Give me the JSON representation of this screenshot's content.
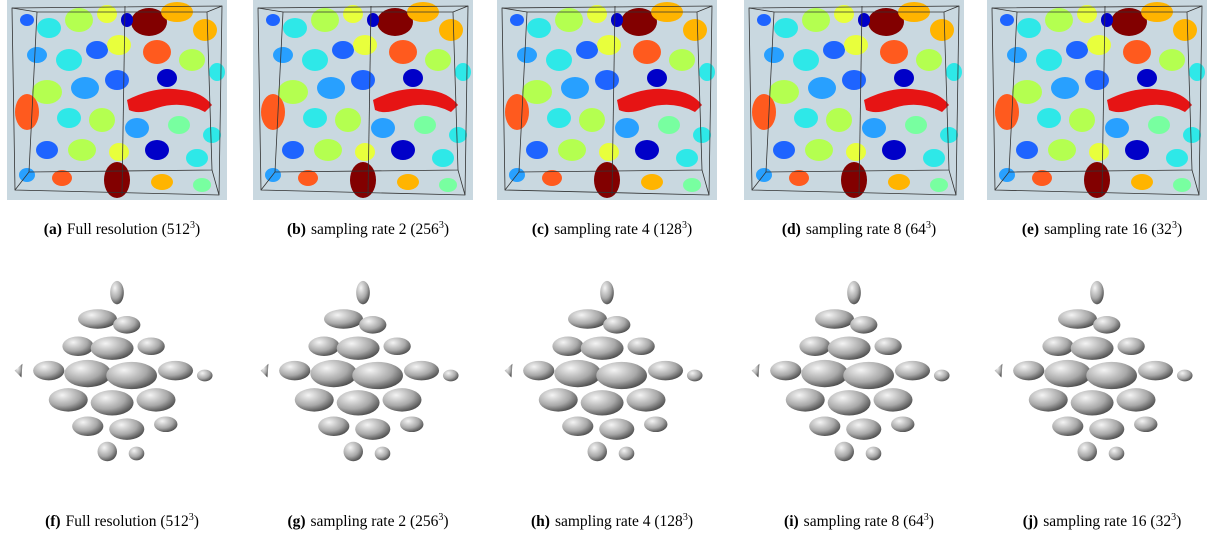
{
  "panels": [
    {
      "label": "(a)",
      "text": "Full resolution (512",
      "exp": "3",
      "tail": ")"
    },
    {
      "label": "(b)",
      "text": "sampling rate 2 (256",
      "exp": "3",
      "tail": ")"
    },
    {
      "label": "(c)",
      "text": "sampling rate 4 (128",
      "exp": "3",
      "tail": ")"
    },
    {
      "label": "(d)",
      "text": "sampling rate 8 (64",
      "exp": "3",
      "tail": ")"
    },
    {
      "label": "(e)",
      "text": "sampling rate 16 (32",
      "exp": "3",
      "tail": ")"
    },
    {
      "label": "(f)",
      "text": "Full resolution (512",
      "exp": "3",
      "tail": ")"
    },
    {
      "label": "(g)",
      "text": "sampling rate 2 (256",
      "exp": "3",
      "tail": ")"
    },
    {
      "label": "(h)",
      "text": "sampling rate 4 (128",
      "exp": "3",
      "tail": ")"
    },
    {
      "label": "(i)",
      "text": "sampling rate 8 (64",
      "exp": "3",
      "tail": ")"
    },
    {
      "label": "(j)",
      "text": "sampling rate 16 (32",
      "exp": "3",
      "tail": ")"
    }
  ]
}
